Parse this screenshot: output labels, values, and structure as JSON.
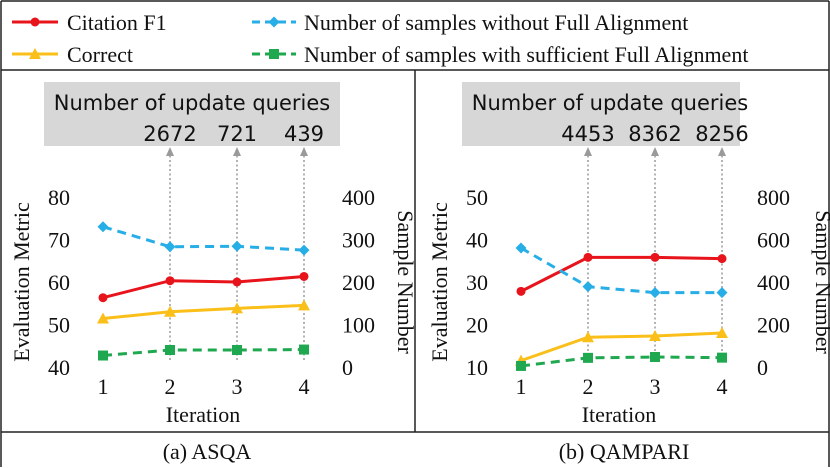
{
  "legend": [
    {
      "label": "Citation F1",
      "color": "#e8141b",
      "marker": "circle",
      "dash": "solid"
    },
    {
      "label": "Number of samples without Full Alignment",
      "color": "#27aee6",
      "marker": "diamond",
      "dash": "dashed"
    },
    {
      "label": "Correct",
      "color": "#fbbf1a",
      "marker": "triangle",
      "dash": "solid"
    },
    {
      "label": "Number of samples with sufficient Full Alignment",
      "color": "#1fa84f",
      "marker": "square",
      "dash": "dashed"
    }
  ],
  "chart_data": [
    {
      "type": "line",
      "caption": "(a) ASQA",
      "xlabel": "Iteration",
      "ylabel": "Evaluation Metric",
      "y2label": "Sample Number",
      "x": [
        1,
        2,
        3,
        4
      ],
      "xticks": [
        "1",
        "2",
        "3",
        "4"
      ],
      "ylim": [
        40,
        80
      ],
      "yticks": [
        "40",
        "50",
        "60",
        "70",
        "80"
      ],
      "y2lim": [
        0,
        400
      ],
      "y2ticks": [
        "0",
        "100",
        "200",
        "300",
        "400"
      ],
      "update_box_title": "Number of update queries",
      "update_queries": [
        {
          "x": 2,
          "label": "2672"
        },
        {
          "x": 3,
          "label": "721"
        },
        {
          "x": 4,
          "label": "439"
        }
      ],
      "series": [
        {
          "name": "Citation F1",
          "axis": "left",
          "values": [
            56.3,
            60.3,
            60.0,
            61.3
          ]
        },
        {
          "name": "Correct",
          "axis": "left",
          "values": [
            51.4,
            53.0,
            53.8,
            54.5
          ]
        },
        {
          "name": "Number of samples without Full Alignment",
          "axis": "right",
          "values": [
            330,
            283,
            284,
            275
          ]
        },
        {
          "name": "Number of samples with sufficient Full Alignment",
          "axis": "right",
          "values": [
            27,
            40,
            40,
            41
          ]
        }
      ]
    },
    {
      "type": "line",
      "caption": "(b) QAMPARI",
      "xlabel": "Iteration",
      "ylabel": "Evaluation Metric",
      "y2label": "Sample Number",
      "x": [
        1,
        2,
        3,
        4
      ],
      "xticks": [
        "1",
        "2",
        "3",
        "4"
      ],
      "ylim": [
        10,
        50
      ],
      "yticks": [
        "10",
        "20",
        "30",
        "40",
        "50"
      ],
      "y2lim": [
        0,
        800
      ],
      "y2ticks": [
        "0",
        "200",
        "400",
        "600",
        "800"
      ],
      "update_box_title": "Number of update queries",
      "update_queries": [
        {
          "x": 2,
          "label": "4453"
        },
        {
          "x": 3,
          "label": "8362"
        },
        {
          "x": 4,
          "label": "8256"
        }
      ],
      "series": [
        {
          "name": "Citation F1",
          "axis": "left",
          "values": [
            27.8,
            35.8,
            35.8,
            35.5
          ]
        },
        {
          "name": "Correct",
          "axis": "left",
          "values": [
            11.5,
            17.0,
            17.3,
            18.0
          ]
        },
        {
          "name": "Number of samples without Full Alignment",
          "axis": "right",
          "values": [
            560,
            378,
            350,
            350
          ]
        },
        {
          "name": "Number of samples with sufficient Full Alignment",
          "axis": "right",
          "values": [
            5,
            43,
            47,
            44
          ]
        }
      ]
    }
  ]
}
